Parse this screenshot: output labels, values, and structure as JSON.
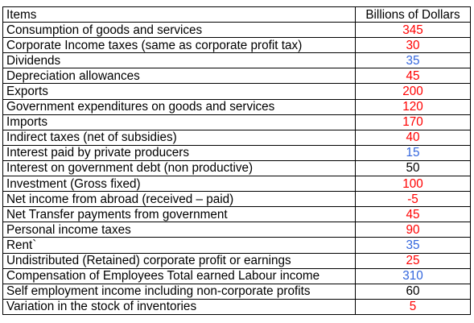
{
  "table": {
    "headers": {
      "items": "Items",
      "value": "Billions of Dollars"
    },
    "colors": {
      "red": "#ff0000",
      "blue": "#3366dd",
      "black": "#000000"
    },
    "rows": [
      {
        "item": "Consumption of goods and services",
        "value": "345",
        "color": "red"
      },
      {
        "item": "Corporate Income taxes (same as corporate profit tax)",
        "value": "30",
        "color": "red"
      },
      {
        "item": "Dividends",
        "value": "35",
        "color": "blue"
      },
      {
        "item": "Depreciation allowances",
        "value": "45",
        "color": "red"
      },
      {
        "item": "Exports",
        "value": "200",
        "color": "red"
      },
      {
        "item": "Government expenditures on goods and services",
        "value": "120",
        "color": "red"
      },
      {
        "item": "Imports",
        "value": "170",
        "color": "red"
      },
      {
        "item": "Indirect taxes (net of subsidies)",
        "value": "40",
        "color": "red"
      },
      {
        "item": "Interest paid by private producers",
        "value": "15",
        "color": "blue"
      },
      {
        "item": "Interest on government debt (non productive)",
        "value": "50",
        "color": "black"
      },
      {
        "item": "Investment (Gross fixed)",
        "value": "100",
        "color": "red"
      },
      {
        "item": "Net income from abroad (received – paid)",
        "value": "-5",
        "color": "red"
      },
      {
        "item": "Net Transfer payments from government",
        "value": "45",
        "color": "red"
      },
      {
        "item": "Personal income taxes",
        "value": "90",
        "color": "red"
      },
      {
        "item": "Rent`",
        "value": "35",
        "color": "blue"
      },
      {
        "item": "Undistributed (Retained) corporate profit or earnings",
        "value": "25",
        "color": "red"
      },
      {
        "item": "Compensation of Employees Total earned Labour income",
        "value": "310",
        "color": "blue"
      },
      {
        "item": "Self employment income including non-corporate profits",
        "value": "60",
        "color": "black"
      },
      {
        "item": "Variation in the stock of inventories",
        "value": "5",
        "color": "red"
      }
    ]
  }
}
